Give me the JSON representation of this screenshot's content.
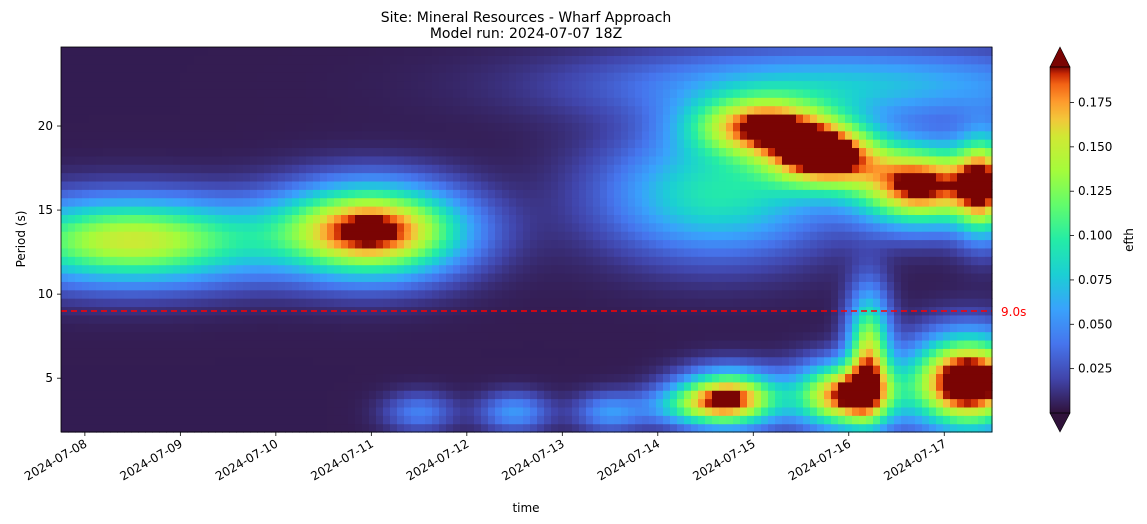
{
  "chart_data": {
    "type": "heatmap",
    "title": "Site: Mineral Resources - Wharf Approach",
    "subtitle": "Model run: 2024-07-07 18Z",
    "xlabel": "time",
    "ylabel": "Period (s)",
    "xlim": [
      "2024-07-07T18:00",
      "2024-07-17T12:00"
    ],
    "ylim": [
      1.8,
      24.7
    ],
    "x_ticks": [
      "2024-07-08",
      "2024-07-09",
      "2024-07-10",
      "2024-07-11",
      "2024-07-12",
      "2024-07-13",
      "2024-07-14",
      "2024-07-15",
      "2024-07-16",
      "2024-07-17"
    ],
    "y_ticks": [
      5,
      10,
      15,
      20
    ],
    "colormap": "turbo",
    "colorbar": {
      "label": "efth",
      "vmin": 0,
      "vmax": 0.195,
      "ticks": [
        0.025,
        0.05,
        0.075,
        0.1,
        0.125,
        0.15,
        0.175
      ],
      "tick_labels": [
        "0.025",
        "0.050",
        "0.075",
        "0.100",
        "0.125",
        "0.150",
        "0.175"
      ],
      "extend": "both"
    },
    "reference_line": {
      "y": 9.0,
      "label": "9.0s",
      "color": "#ff0000",
      "style": "dashed"
    },
    "energy_blobs": [
      {
        "t": "2024-07-08T12:00",
        "period": 13.2,
        "peak": 0.15,
        "t_spread_days": 0.95,
        "period_spread": 1.7
      },
      {
        "t": "2024-07-11T00:00",
        "period": 13.8,
        "peak": 0.205,
        "t_spread_days": 0.65,
        "period_spread": 1.8
      },
      {
        "t": "2024-07-14T15:00",
        "period": 16.0,
        "peak": 0.09,
        "t_spread_days": 0.8,
        "period_spread": 2.5
      },
      {
        "t": "2024-07-15T02:00",
        "period": 20.0,
        "peak": 0.16,
        "t_spread_days": 0.5,
        "period_spread": 1.2
      },
      {
        "t": "2024-07-15T18:00",
        "period": 18.3,
        "peak": 0.195,
        "t_spread_days": 0.4,
        "period_spread": 1.3
      },
      {
        "t": "2024-07-16T18:00",
        "period": 16.5,
        "peak": 0.2,
        "t_spread_days": 0.45,
        "period_spread": 1.6
      },
      {
        "t": "2024-07-17T10:00",
        "period": 16.5,
        "peak": 0.16,
        "t_spread_days": 0.2,
        "period_spread": 2.0
      },
      {
        "t": "2024-07-15T23:00",
        "period": 22.5,
        "peak": 0.07,
        "t_spread_days": 1.7,
        "period_spread": 1.5
      },
      {
        "t": "2024-07-14T06:00",
        "period": 3.4,
        "peak": 0.05,
        "t_spread_days": 0.3,
        "period_spread": 0.8
      },
      {
        "t": "2024-07-14T18:00",
        "period": 3.8,
        "peak": 0.195,
        "t_spread_days": 0.35,
        "period_spread": 1.1
      },
      {
        "t": "2024-07-15T23:00",
        "period": 4.0,
        "peak": 0.19,
        "t_spread_days": 0.35,
        "period_spread": 1.3
      },
      {
        "t": "2024-07-16T05:00",
        "period": 6.5,
        "peak": 0.14,
        "t_spread_days": 0.15,
        "period_spread": 2.5
      },
      {
        "t": "2024-07-17T06:00",
        "period": 4.8,
        "peak": 0.24,
        "t_spread_days": 0.4,
        "period_spread": 1.8
      },
      {
        "t": "2024-07-12T12:00",
        "period": 3.0,
        "peak": 0.05,
        "t_spread_days": 0.25,
        "period_spread": 0.8
      },
      {
        "t": "2024-07-13T12:00",
        "period": 3.0,
        "peak": 0.05,
        "t_spread_days": 0.25,
        "period_spread": 0.8
      },
      {
        "t": "2024-07-11T12:00",
        "period": 3.0,
        "peak": 0.04,
        "t_spread_days": 0.25,
        "period_spread": 0.8
      }
    ]
  }
}
